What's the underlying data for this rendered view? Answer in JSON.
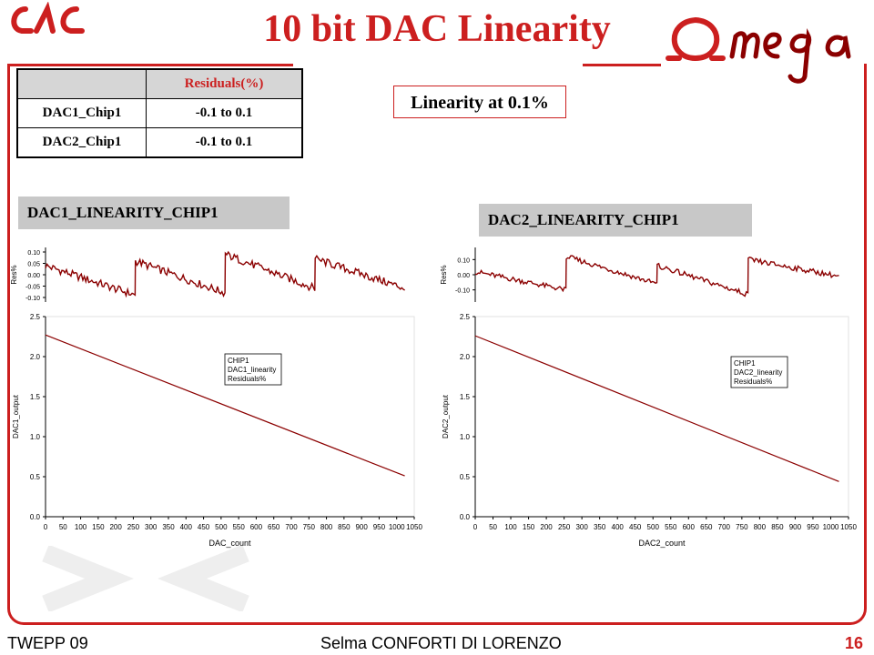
{
  "slide": {
    "title": "10 bit DAC Linearity",
    "callout": "Linearity at 0.1%",
    "footer_left": "TWEPP 09",
    "footer_center": "Selma CONFORTI DI LORENZO",
    "page_number": "16",
    "accent_color": "#cc1f1f"
  },
  "table": {
    "header": [
      "",
      "Residuals(%)"
    ],
    "rows": [
      {
        "name": "DAC1_Chip1",
        "value": "-0.1 to 0.1"
      },
      {
        "name": "DAC2_Chip1",
        "value": "-0.1 to 0.1"
      }
    ]
  },
  "chart_labels": {
    "left_tag": "DAC1_LINEARITY_CHIP1",
    "right_tag": "DAC2_LINEARITY_CHIP1"
  },
  "chart_data": [
    {
      "type": "line",
      "xlabel": "DAC_count",
      "ylabel": "DAC1_output",
      "residual_ylabel": "Res%",
      "xticks": [
        "0",
        "50",
        "100",
        "150",
        "200",
        "250",
        "300",
        "350",
        "400",
        "450",
        "500",
        "550",
        "600",
        "650",
        "700",
        "750",
        "800",
        "850",
        "900",
        "950",
        "1000",
        "1050"
      ],
      "yticks": [
        "0.0",
        "0.5",
        "1.0",
        "1.5",
        "2.0",
        "2.5"
      ],
      "residual_yticks": [
        "0.10",
        "0.05",
        "0.00",
        "-0.05",
        "-0.10"
      ],
      "xlim": [
        0,
        1050
      ],
      "ylim": [
        0,
        2.5
      ],
      "residual_ylim": [
        -0.12,
        0.12
      ],
      "legend": [
        "CHIP1",
        "DAC1_linearity",
        "Residuals%"
      ],
      "line_color": "#8b0000",
      "series": [
        {
          "name": "DAC1_linearity",
          "x": [
            0,
            1023
          ],
          "y": [
            2.27,
            0.51
          ]
        },
        {
          "name": "Residuals%",
          "segments": [
            {
              "x": [
                0,
                255
              ],
              "y": [
                0.04,
                -0.09
              ]
            },
            {
              "x": [
                256,
                511
              ],
              "y": [
                0.06,
                -0.08
              ]
            },
            {
              "x": [
                512,
                767
              ],
              "y": [
                0.09,
                -0.06
              ]
            },
            {
              "x": [
                768,
                1023
              ],
              "y": [
                0.07,
                -0.06
              ]
            }
          ]
        }
      ]
    },
    {
      "type": "line",
      "xlabel": "DAC2_count",
      "ylabel": "DAC2_output",
      "residual_ylabel": "Res%",
      "xticks": [
        "0",
        "50",
        "100",
        "150",
        "200",
        "250",
        "300",
        "350",
        "400",
        "450",
        "500",
        "550",
        "600",
        "650",
        "700",
        "750",
        "800",
        "850",
        "900",
        "950",
        "1000",
        "1050"
      ],
      "yticks": [
        "0.0",
        "0.5",
        "1.0",
        "1.5",
        "2.0",
        "2.5"
      ],
      "residual_yticks": [
        "0.10",
        "0.00",
        "-0.10"
      ],
      "xlim": [
        0,
        1050
      ],
      "ylim": [
        0,
        2.5
      ],
      "residual_ylim": [
        -0.18,
        0.18
      ],
      "legend": [
        "CHIP1",
        "DAC2_linearity",
        "Residuals%"
      ],
      "line_color": "#8b0000",
      "series": [
        {
          "name": "DAC2_linearity",
          "x": [
            0,
            1023
          ],
          "y": [
            2.26,
            0.44
          ]
        },
        {
          "name": "Residuals%",
          "segments": [
            {
              "x": [
                0,
                255
              ],
              "y": [
                0.02,
                -0.1
              ]
            },
            {
              "x": [
                256,
                511
              ],
              "y": [
                0.12,
                -0.06
              ]
            },
            {
              "x": [
                512,
                767
              ],
              "y": [
                0.06,
                -0.13
              ]
            },
            {
              "x": [
                768,
                1023
              ],
              "y": [
                0.1,
                -0.01
              ]
            }
          ]
        }
      ]
    }
  ]
}
